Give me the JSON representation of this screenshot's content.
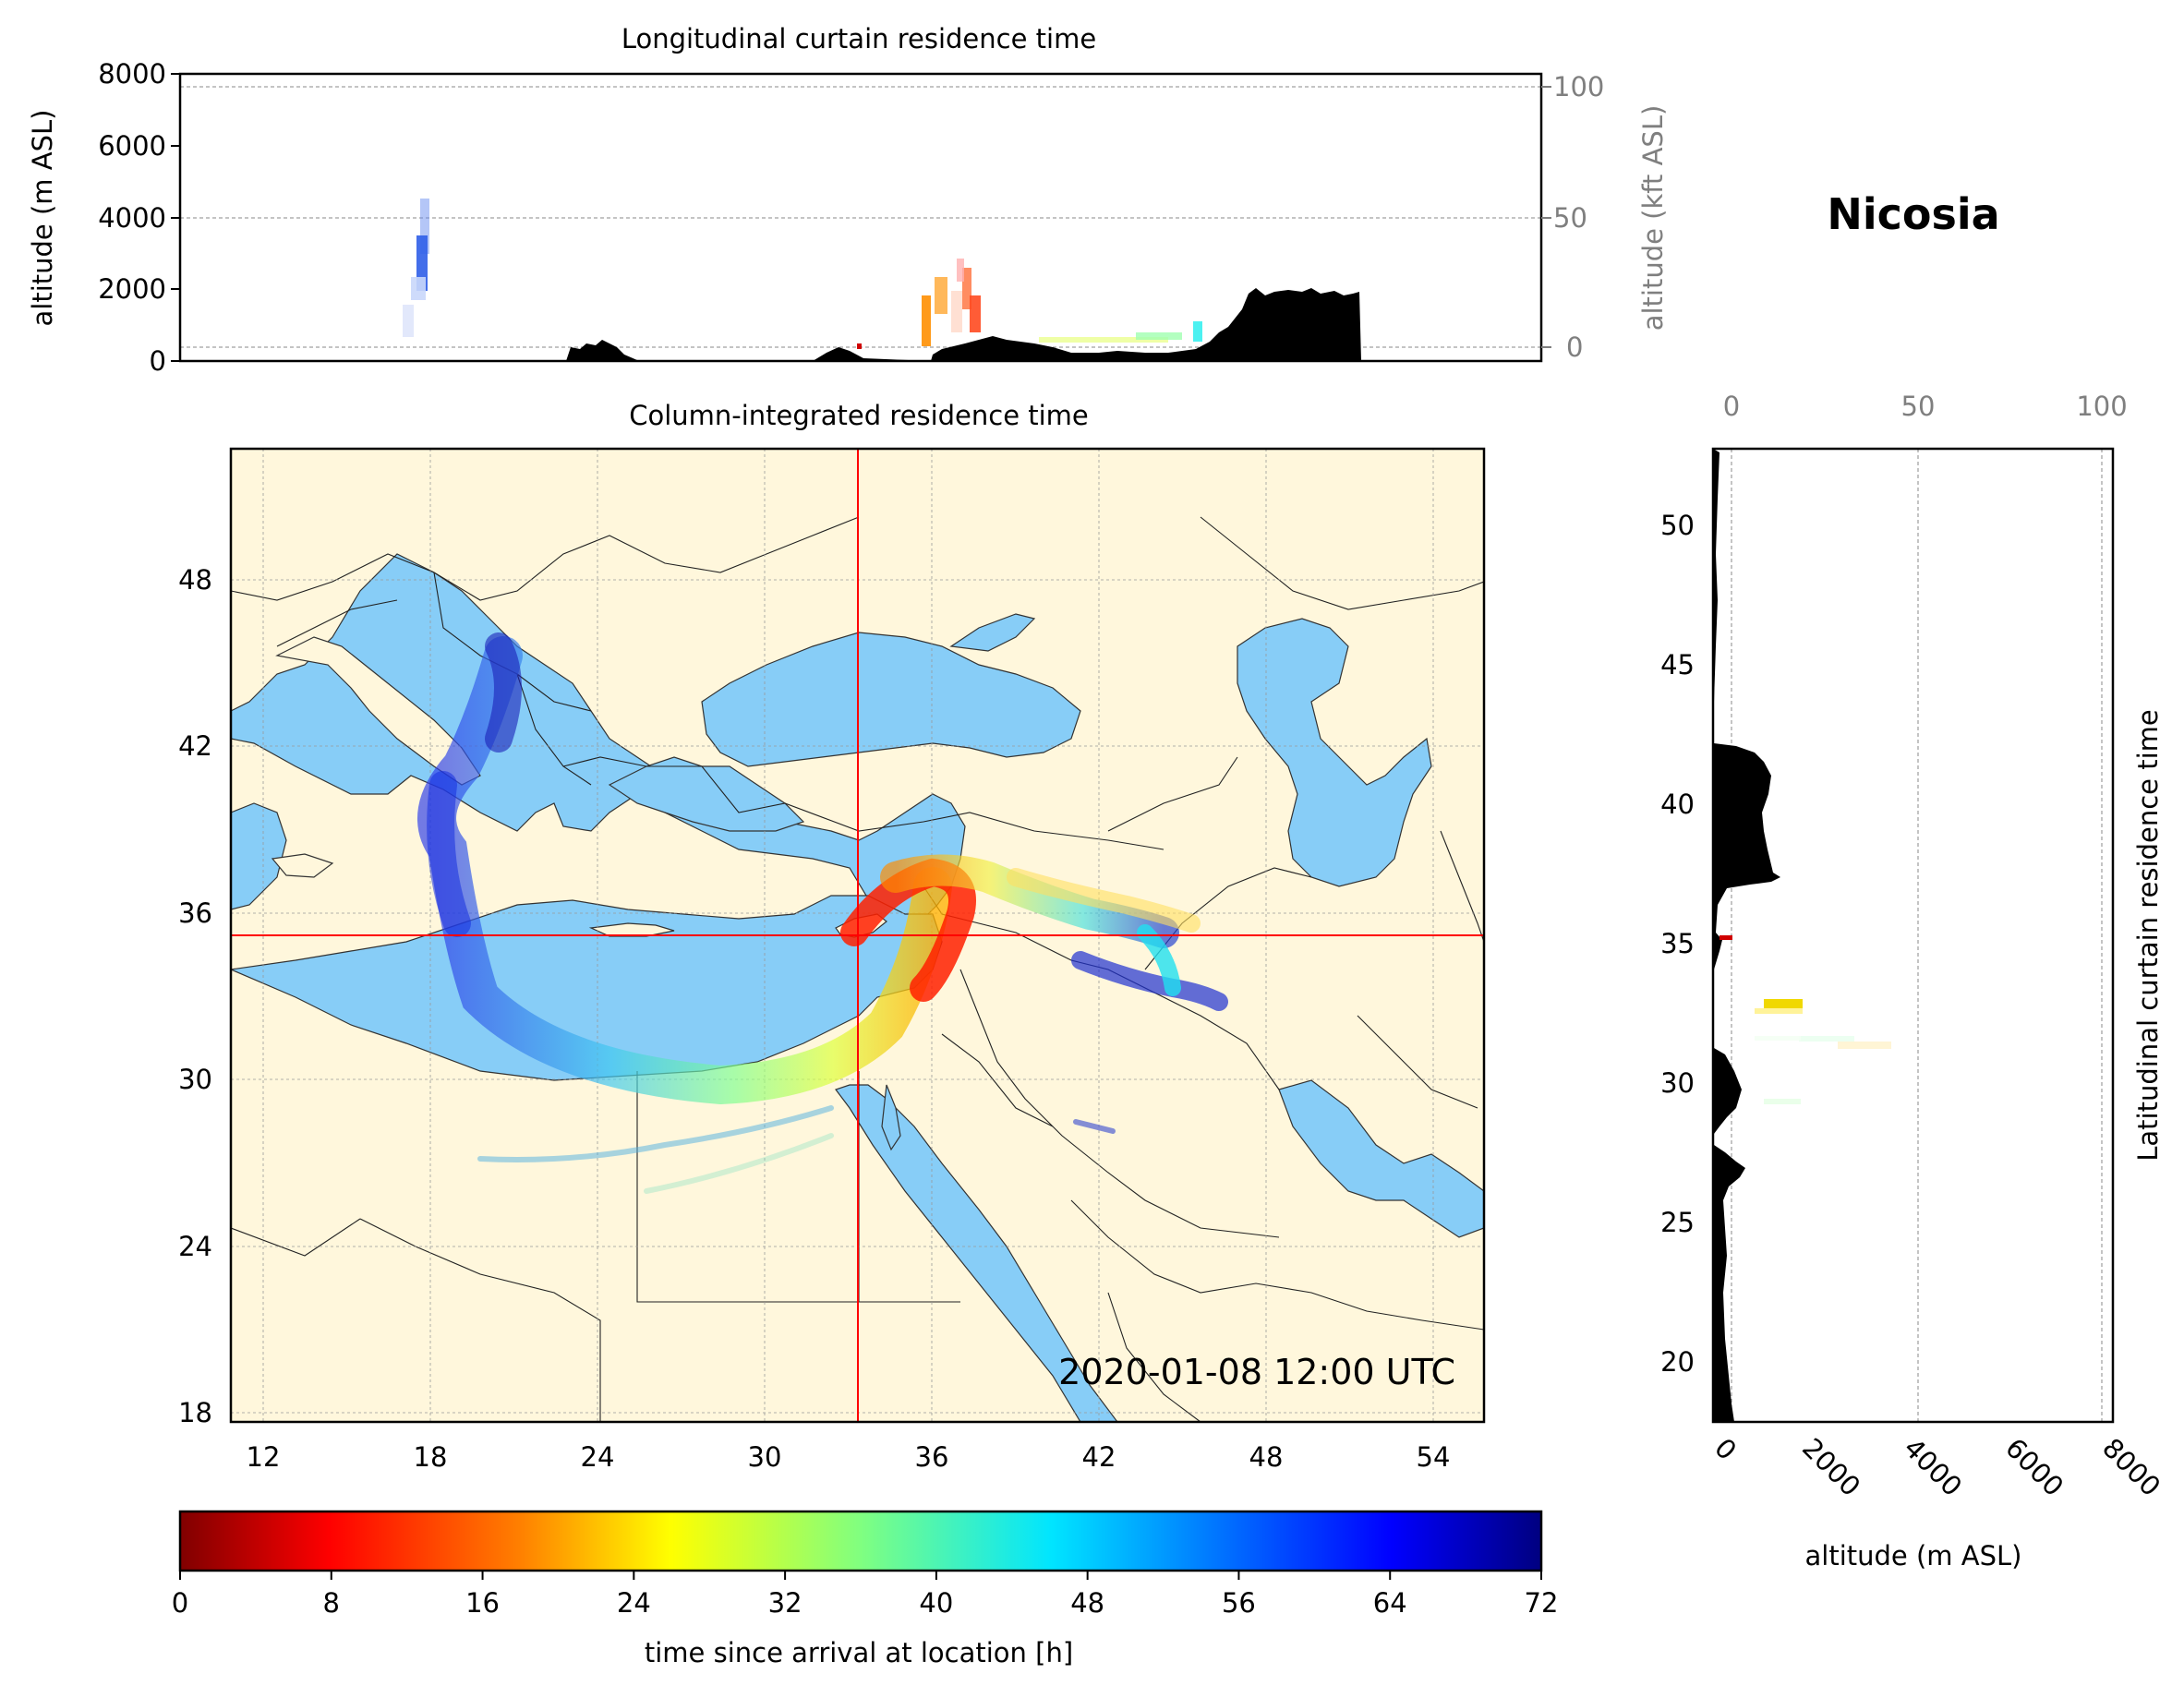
{
  "station": "Nicosia",
  "timestamp": "2020-01-08 12:00 UTC",
  "top_panel": {
    "title": "Longitudinal curtain residence time",
    "ylabel_left": "altitude (m ASL)",
    "ylabel_right": "altitude (kft ASL)",
    "yticks_left": [
      "0",
      "2000",
      "4000",
      "6000",
      "8000"
    ],
    "yticks_right": [
      "0",
      "50",
      "100"
    ]
  },
  "map_panel": {
    "title": "Column-integrated residence time",
    "xticks": [
      "12",
      "18",
      "24",
      "30",
      "36",
      "42",
      "48",
      "54"
    ],
    "yticks": [
      "18",
      "24",
      "30",
      "36",
      "42",
      "48"
    ],
    "crosshair": {
      "lon": 33.38,
      "lat": 35.17
    }
  },
  "right_panel": {
    "ylabel": "Latitudinal curtain residence time",
    "xlabel": "altitude (m ASL)",
    "xticks_bottom": [
      "0",
      "2000",
      "4000",
      "6000",
      "8000"
    ],
    "xticks_top": [
      "0",
      "50",
      "100"
    ],
    "yticks": [
      "20",
      "25",
      "30",
      "35",
      "40",
      "45",
      "50"
    ]
  },
  "colorbar": {
    "label": "time since arrival at location [h]",
    "ticks": [
      "0",
      "8",
      "16",
      "24",
      "32",
      "40",
      "48",
      "56",
      "64",
      "72"
    ],
    "min": 0,
    "max": 72,
    "colormap": "jet_r"
  },
  "colors": {
    "land": "#fff7dc",
    "water": "#87cdf7",
    "crosshair": "#ff0000",
    "terrain": "#000000"
  }
}
